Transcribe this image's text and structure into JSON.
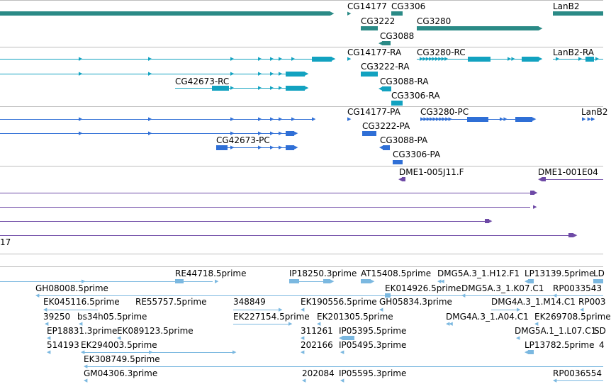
{
  "colors": {
    "gene": "#2a8a86",
    "rna": "#12a2c0",
    "protein": "#2f6fd6",
    "clone": "#6e4aa6",
    "est": "#7bb8e0",
    "separator": "#bdbdbd"
  },
  "tracks": {
    "genes": {
      "labels": [
        "CG14177",
        "CG3306",
        "LanB2",
        "CG3222",
        "CG3280",
        "CG3088"
      ]
    },
    "transcripts": {
      "labels": [
        "CG14177-RA",
        "CG3280-RC",
        "LanB2-RA",
        "CG3222-RA",
        "CG42673-RC",
        "CG3088-RA",
        "CG3306-RA"
      ]
    },
    "proteins": {
      "labels": [
        "CG14177-PA",
        "CG3280-PC",
        "LanB2",
        "CG3222-PA",
        "CG42673-PC",
        "CG3088-PA",
        "CG3306-PA"
      ]
    },
    "clones": {
      "labels": [
        "DME1-005J11.F",
        "DME1-001E04",
        "17"
      ]
    },
    "ests": {
      "labels": [
        "RE44718.5prime",
        "IP18250.3prime",
        "AT15408.5prime",
        "DMG5A.3_1.H12.F1",
        "LP13139.5prime",
        "LD",
        "GH08008.5prime",
        "EK014926.5prime",
        "DMG5A.3_1.K07.C1",
        "RP0033543",
        "EK045116.5prime",
        "RE55757.5prime",
        "348849",
        "EK190556.5prime",
        "GH05834.3prime",
        "DMG4A.3_1.M14.C1",
        "RP003",
        "39250",
        "bs34h05.5prime",
        "EK227154.5prime",
        "EK201305.5prime",
        "DMG4A.3_1.A04.C1",
        "EK269708.5prime",
        "EP18831.3prime",
        "EK089123.5prime",
        "311261",
        "IP05395.5prime",
        "DMG5A.1_1.L07.C1",
        "SD",
        "514193",
        "EK294003.5prime",
        "202166",
        "IP05495.3prime",
        "LP13782.5prime",
        "4",
        "EK308749.5prime",
        "GM04306.3prime",
        "202084",
        "IP05595.3prime",
        "RP0036554"
      ]
    }
  }
}
